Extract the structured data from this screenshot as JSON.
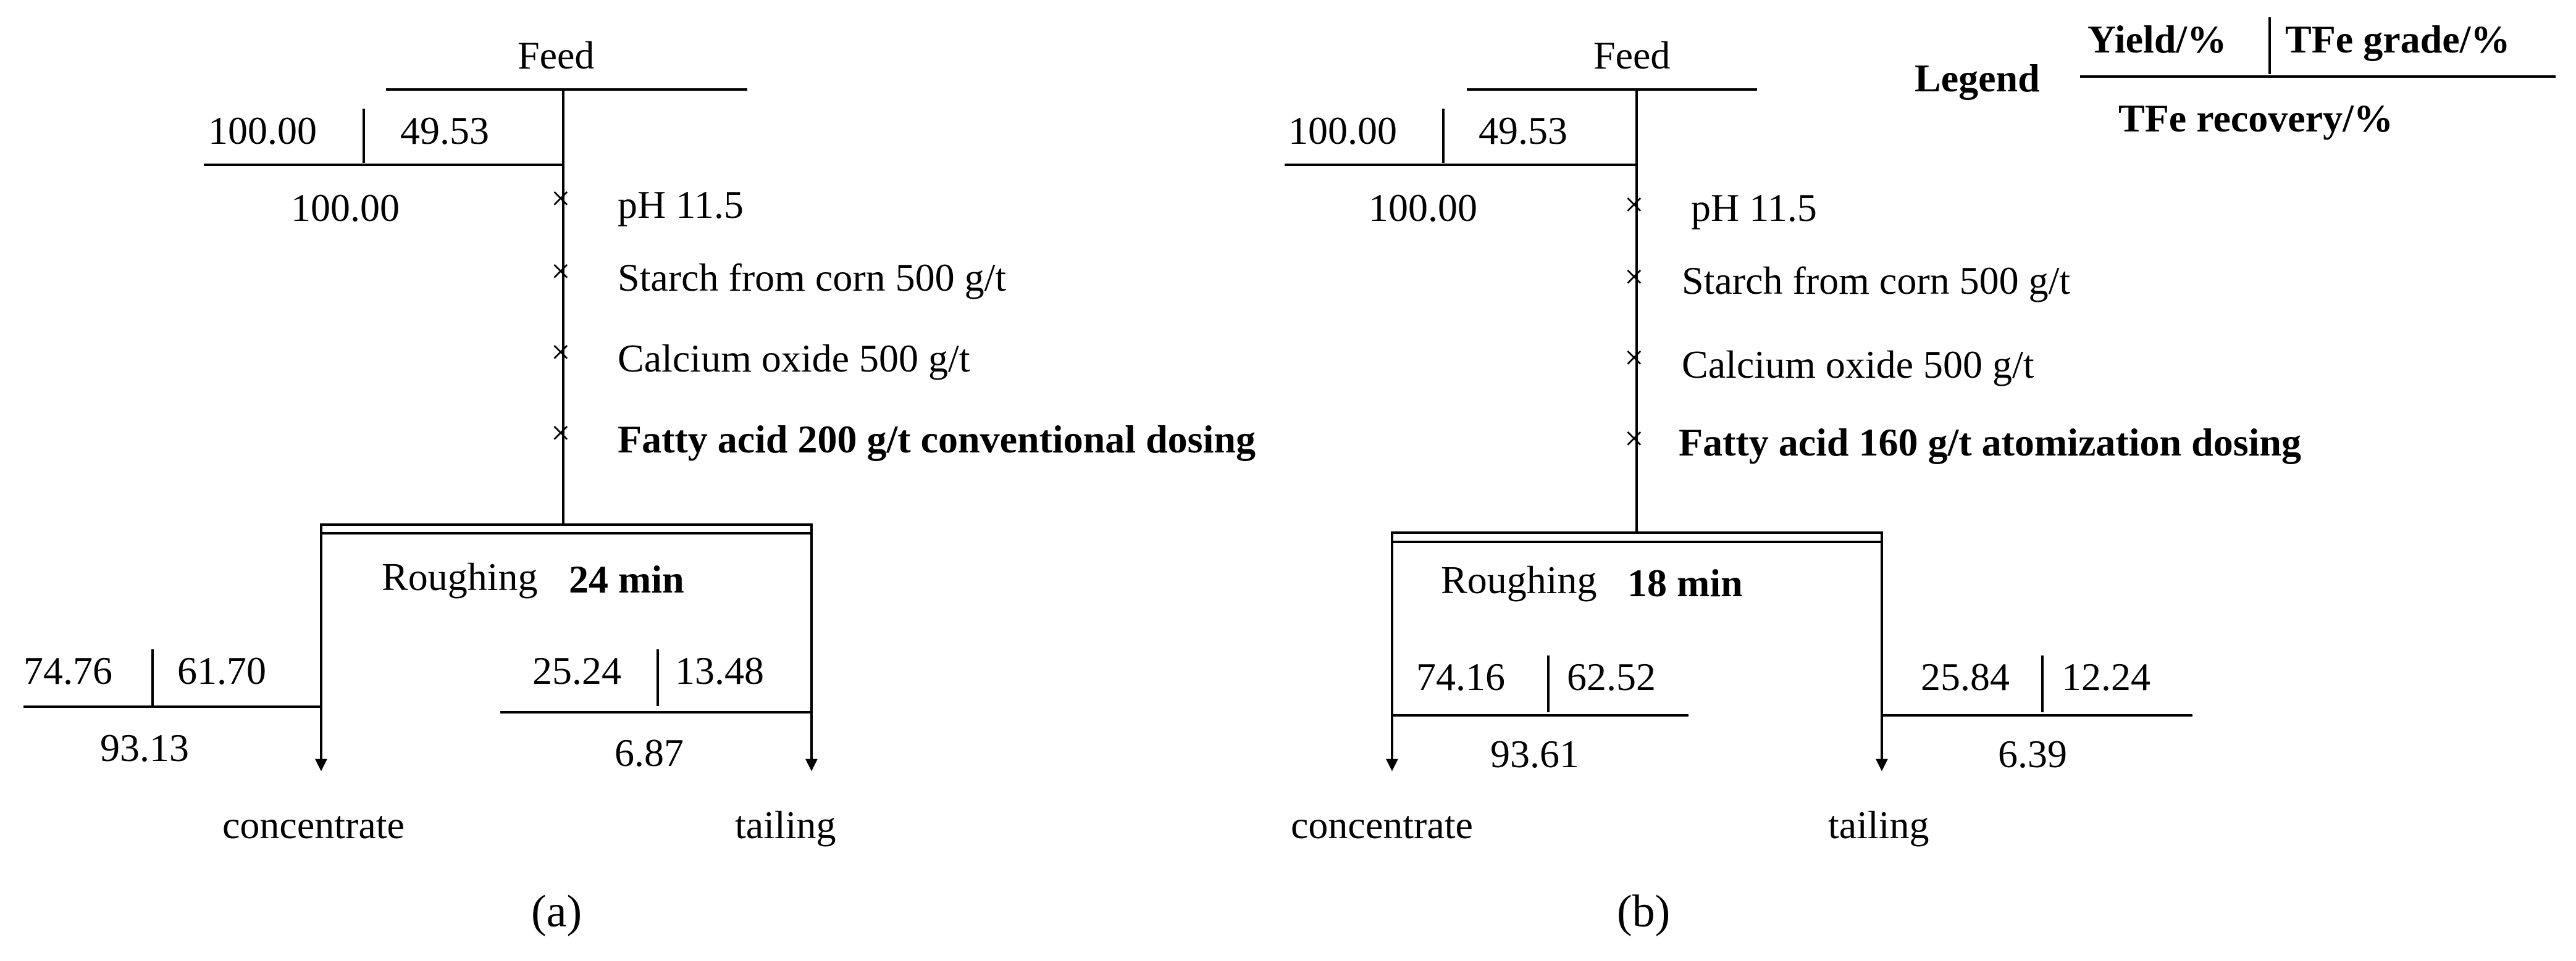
{
  "diagrams": [
    {
      "feed_label": "Feed",
      "feed_yield": "100.00",
      "feed_grade": "49.53",
      "feed_recovery": "100.00",
      "reagents": [
        "pH 11.5",
        "Starch from corn 500 g/t",
        "Calcium oxide 500 g/t",
        "Fatty acid 200 g/t  conventional dosing"
      ],
      "stage_label": "Roughing",
      "stage_time": "24 min",
      "concentrate": {
        "yield": "74.76",
        "grade": "61.70",
        "recovery": "93.13",
        "label": "concentrate"
      },
      "tailing": {
        "yield": "25.24",
        "grade": "13.48",
        "recovery": "6.87",
        "label": "tailing"
      },
      "caption": "(a)"
    },
    {
      "feed_label": "Feed",
      "feed_yield": "100.00",
      "feed_grade": "49.53",
      "feed_recovery": "100.00",
      "reagents": [
        "pH 11.5",
        "Starch from corn 500 g/t",
        "Calcium oxide 500 g/t",
        "Fatty acid 160 g/t  atomization dosing"
      ],
      "stage_label": "Roughing",
      "stage_time": "18 min",
      "concentrate": {
        "yield": "74.16",
        "grade": "62.52",
        "recovery": "93.61",
        "label": "concentrate"
      },
      "tailing": {
        "yield": "25.84",
        "grade": "12.24",
        "recovery": "6.39",
        "label": "tailing"
      },
      "caption": "(b)"
    }
  ],
  "legend": {
    "title": "Legend",
    "yield": "Yield/%",
    "grade": "TFe grade/%",
    "recovery": "TFe recovery/%"
  }
}
